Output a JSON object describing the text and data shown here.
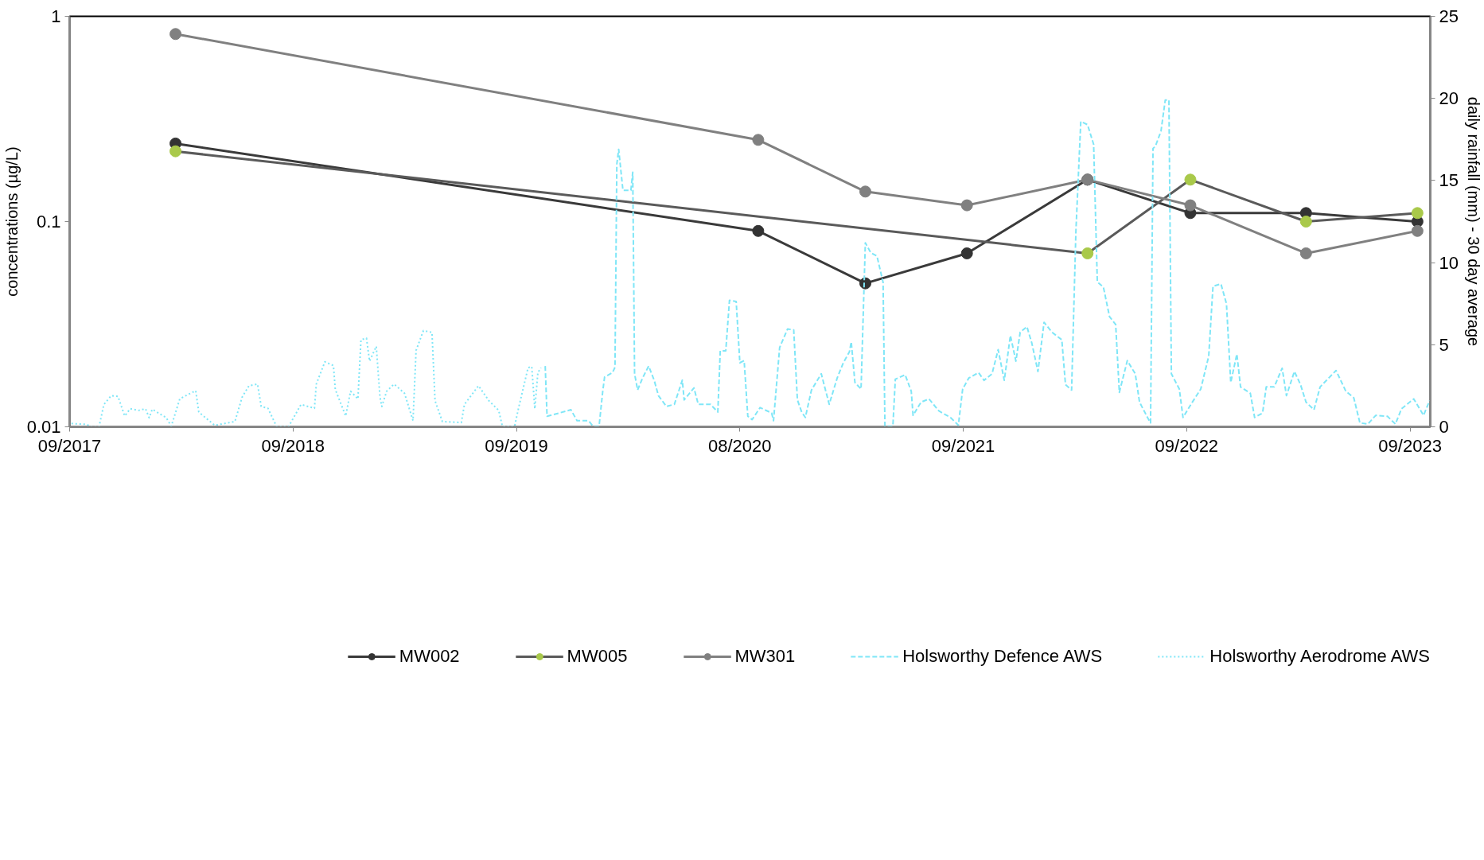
{
  "chart_data": {
    "type": "line",
    "ylabel": "concentrations (µg/L)",
    "y2label": "daily rainfall (mm) - 30 day average",
    "log": "y",
    "grid": false,
    "legend": "bottom",
    "marker": "circle",
    "xlim": [
      "2017-09-01",
      "2023-10-03"
    ],
    "xticks": [
      {
        "value": "2017-09-01",
        "label": "09/2017"
      },
      {
        "value": "2018-09-01",
        "label": "09/2018"
      },
      {
        "value": "2019-09-01",
        "label": "09/2019"
      },
      {
        "value": "2020-08-31",
        "label": "08/2020"
      },
      {
        "value": "2021-08-31",
        "label": "09/2021"
      },
      {
        "value": "2022-08-31",
        "label": "09/2022"
      },
      {
        "value": "2023-08-31",
        "label": "09/2023"
      }
    ],
    "ylim": [
      0.01,
      1
    ],
    "yticks": [
      0.01,
      0.1,
      1
    ],
    "y2lim": [
      0,
      25
    ],
    "y2ticks": [
      0,
      5,
      10,
      15,
      20,
      25
    ],
    "series": [
      {
        "name": "MW002",
        "color": "#3a3a3a",
        "colors": [
          "#333333",
          "#333333",
          "#333333",
          "#333333",
          "#333333",
          "#333333",
          "#333333",
          "#333333"
        ],
        "x": [
          "2018-02-21",
          "2020-09-30",
          "2021-03-24",
          "2021-09-06",
          "2022-03-22",
          "2022-09-06",
          "2023-03-14",
          "2023-09-12"
        ],
        "values": [
          0.24,
          0.09,
          0.05,
          0.07,
          0.16,
          0.11,
          0.11,
          0.1
        ]
      },
      {
        "name": "MW005",
        "color": "#5a5a5a",
        "colors": [
          "#a9c94a",
          "#a9c94a",
          "#a9c94a",
          "#a9c94a",
          "#a9c94a"
        ],
        "x": [
          "2018-02-21",
          "2022-03-22",
          "2022-09-06",
          "2023-03-14",
          "2023-09-12"
        ],
        "values": [
          0.22,
          0.07,
          0.16,
          0.1,
          0.11
        ]
      },
      {
        "name": "MW301",
        "color": "#808080",
        "colors": [
          "#808080",
          "#808080",
          "#808080",
          "#808080",
          "#808080",
          "#808080",
          "#808080",
          "#808080"
        ],
        "x": [
          "2018-02-21",
          "2020-09-30",
          "2021-03-24",
          "2021-09-06",
          "2022-03-22",
          "2022-09-06",
          "2023-03-14",
          "2023-09-12"
        ],
        "values": [
          0.82,
          0.25,
          0.14,
          0.12,
          0.16,
          0.12,
          0.07,
          0.09
        ]
      },
      {
        "name": "Holsworthy Defence AWS",
        "type": "line",
        "axis": "y2",
        "marker": "none",
        "line_style": "dashed",
        "color": "#7fe6f7",
        "x": [
          "2019-10-18",
          "2019-10-21",
          "2019-11-10",
          "2019-11-29",
          "2019-12-09",
          "2019-12-28",
          "2020-01-04",
          "2020-01-14",
          "2020-01-20",
          "2020-01-23",
          "2020-02-05",
          "2020-02-09",
          "2020-02-12",
          "2020-02-15",
          "2020-02-22",
          "2020-03-06",
          "2020-03-09",
          "2020-03-12",
          "2020-03-17",
          "2020-03-25",
          "2020-04-04",
          "2020-04-13",
          "2020-04-20",
          "2020-05-03",
          "2020-05-16",
          "2020-05-29",
          "2020-06-01",
          "2020-06-17",
          "2020-06-24",
          "2020-07-14",
          "2020-07-26",
          "2020-07-30",
          "2020-08-08",
          "2020-08-14",
          "2020-08-25",
          "2020-08-31",
          "2020-09-07",
          "2020-09-13",
          "2020-09-20",
          "2020-10-03",
          "2020-10-22",
          "2020-10-25",
          "2020-11-04",
          "2020-11-17",
          "2020-11-27",
          "2020-12-03",
          "2020-12-10",
          "2020-12-16",
          "2020-12-26",
          "2021-01-11",
          "2021-01-24",
          "2021-02-06",
          "2021-02-16",
          "2021-02-26",
          "2021-03-01",
          "2021-03-07",
          "2021-03-17",
          "2021-03-24",
          "2021-04-02",
          "2021-04-12",
          "2021-04-22",
          "2021-04-25",
          "2021-05-08",
          "2021-05-12",
          "2021-05-28",
          "2021-06-07",
          "2021-06-10",
          "2021-06-23",
          "2021-07-06",
          "2021-07-22",
          "2021-08-10",
          "2021-08-23",
          "2021-08-30",
          "2021-09-09",
          "2021-09-25",
          "2021-10-04",
          "2021-10-17",
          "2021-10-27",
          "2021-11-06",
          "2021-11-16",
          "2021-11-25",
          "2021-12-02",
          "2021-12-13",
          "2021-12-21",
          "2021-12-31",
          "2022-01-10",
          "2022-01-23",
          "2022-02-08",
          "2022-02-14",
          "2022-02-24",
          "2022-03-03",
          "2022-03-11",
          "2022-03-22",
          "2022-04-01",
          "2022-04-07",
          "2022-04-17",
          "2022-04-27",
          "2022-05-07",
          "2022-05-13",
          "2022-05-26",
          "2022-06-08",
          "2022-06-15",
          "2022-06-28",
          "2022-07-03",
          "2022-07-07",
          "2022-07-11",
          "2022-07-20",
          "2022-07-27",
          "2022-08-02",
          "2022-08-06",
          "2022-08-19",
          "2022-08-25",
          "2022-09-07",
          "2022-09-23",
          "2022-10-06",
          "2022-10-13",
          "2022-10-26",
          "2022-11-04",
          "2022-11-11",
          "2022-11-21",
          "2022-11-27",
          "2022-12-13",
          "2022-12-20",
          "2023-01-02",
          "2023-01-08",
          "2023-01-21",
          "2023-02-03",
          "2023-02-10",
          "2023-02-23",
          "2023-03-05",
          "2023-03-14",
          "2023-03-27",
          "2023-04-06",
          "2023-05-02",
          "2023-05-18",
          "2023-05-31",
          "2023-06-10",
          "2023-06-23",
          "2023-07-06",
          "2023-07-25",
          "2023-08-07",
          "2023-08-17",
          "2023-09-06",
          "2023-09-22",
          "2023-10-02"
        ],
        "values": [
          3.7,
          0.64,
          0.84,
          1.04,
          0.37,
          0.37,
          0.04,
          0.04,
          2.17,
          3.03,
          3.3,
          3.63,
          16.0,
          16.9,
          14.4,
          14.4,
          15.5,
          3.23,
          2.24,
          2.97,
          3.7,
          2.84,
          1.9,
          1.24,
          1.37,
          2.84,
          1.64,
          2.37,
          1.37,
          1.37,
          0.9,
          4.63,
          4.63,
          7.7,
          7.63,
          3.9,
          4.03,
          0.64,
          0.44,
          1.17,
          0.84,
          0.37,
          4.83,
          5.96,
          5.9,
          1.64,
          0.9,
          0.57,
          2.24,
          3.23,
          1.37,
          2.97,
          3.9,
          4.57,
          5.17,
          2.7,
          2.3,
          11.2,
          10.6,
          10.4,
          8.8,
          0.04,
          0.04,
          2.9,
          3.17,
          2.17,
          0.7,
          1.5,
          1.7,
          0.97,
          0.57,
          0.1,
          2.3,
          2.97,
          3.3,
          2.83,
          3.23,
          4.7,
          2.83,
          5.56,
          4.0,
          5.76,
          6.1,
          5.1,
          3.37,
          6.36,
          5.76,
          5.3,
          2.57,
          2.24,
          11.9,
          18.6,
          18.4,
          17.2,
          8.83,
          8.5,
          6.7,
          6.23,
          2.1,
          4.03,
          3.23,
          1.5,
          0.57,
          0.24,
          16.95,
          17.1,
          18.0,
          19.9,
          19.9,
          3.23,
          2.3,
          0.57,
          1.37,
          2.3,
          4.3,
          8.56,
          8.7,
          7.5,
          2.7,
          4.43,
          2.43,
          2.04,
          0.57,
          0.84,
          2.43,
          2.43,
          3.57,
          1.9,
          3.37,
          2.57,
          1.5,
          1.04,
          2.43,
          3.43,
          2.17,
          1.77,
          0.24,
          0.17,
          0.7,
          0.64,
          0.17,
          1.1,
          1.7,
          0.7,
          1.6
        ]
      },
      {
        "name": "Holsworthy Aerodrome AWS",
        "type": "line",
        "axis": "y2",
        "marker": "none",
        "line_style": "dotted",
        "color": "#7fe6f7",
        "x": [
          "2017-09-04",
          "2017-09-29",
          "2017-10-05",
          "2017-10-19",
          "2017-10-27",
          "2017-11-08",
          "2017-11-19",
          "2017-11-30",
          "2017-12-09",
          "2017-12-23",
          "2018-01-03",
          "2018-01-09",
          "2018-01-14",
          "2018-02-06",
          "2018-02-14",
          "2018-02-28",
          "2018-03-12",
          "2018-03-26",
          "2018-03-31",
          "2018-04-26",
          "2018-05-29",
          "2018-06-10",
          "2018-06-21",
          "2018-07-05",
          "2018-07-11",
          "2018-07-22",
          "2018-08-05",
          "2018-08-25",
          "2018-09-14",
          "2018-10-06",
          "2018-10-09",
          "2018-10-23",
          "2018-11-06",
          "2018-11-09",
          "2018-11-26",
          "2018-12-04",
          "2018-12-16",
          "2018-12-21",
          "2018-12-30",
          "2019-01-04",
          "2019-01-15",
          "2019-01-21",
          "2019-01-24",
          "2019-02-01",
          "2019-02-13",
          "2019-03-02",
          "2019-03-16",
          "2019-03-21",
          "2019-04-02",
          "2019-04-16",
          "2019-04-21",
          "2019-05-03",
          "2019-06-03",
          "2019-06-08",
          "2019-07-01",
          "2019-07-18",
          "2019-08-03",
          "2019-08-09",
          "2019-08-29",
          "2019-09-04",
          "2019-09-20",
          "2019-09-26",
          "2019-10-01",
          "2019-10-06",
          "2019-10-11"
        ],
        "values": [
          0.2,
          0.15,
          0,
          0,
          1.36,
          1.9,
          1.85,
          0.66,
          1.1,
          1.0,
          1.1,
          0.55,
          1.07,
          0.55,
          0.03,
          1.7,
          1.94,
          2.2,
          0.9,
          0.09,
          0.32,
          1.82,
          2.5,
          2.6,
          1.24,
          1.13,
          0.03,
          0.03,
          1.36,
          1.13,
          2.6,
          3.96,
          3.73,
          2.28,
          0.66,
          2.17,
          1.7,
          5.3,
          5.4,
          4.0,
          4.9,
          1.82,
          1.24,
          2.17,
          2.6,
          2.05,
          0.38,
          4.65,
          5.86,
          5.75,
          1.59,
          0.32,
          0.26,
          1.36,
          2.5,
          1.59,
          1.0,
          0.03,
          0.03,
          1.07,
          3.6,
          3.67,
          1.1,
          3.3,
          3.6
        ]
      }
    ]
  }
}
